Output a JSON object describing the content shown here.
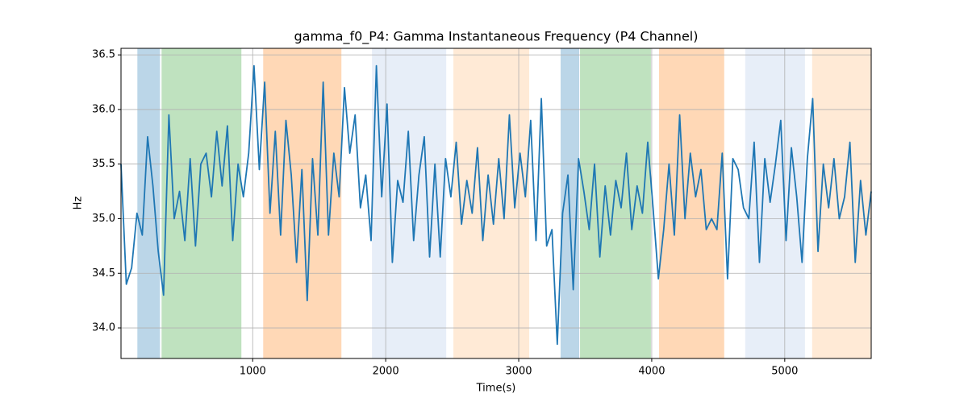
{
  "chart_data": {
    "type": "line",
    "title": "gamma_f0_P4: Gamma Instantaneous Frequency (P4 Channel)",
    "x_label": "Time(s)",
    "y_label": "Hz",
    "x": [
      10,
      50,
      90,
      130,
      170,
      210,
      250,
      290,
      330,
      370,
      410,
      450,
      490,
      530,
      570,
      610,
      650,
      690,
      730,
      770,
      810,
      850,
      890,
      930,
      970,
      1010,
      1050,
      1090,
      1130,
      1170,
      1210,
      1250,
      1290,
      1330,
      1370,
      1410,
      1450,
      1490,
      1530,
      1570,
      1610,
      1650,
      1690,
      1730,
      1770,
      1810,
      1850,
      1890,
      1930,
      1970,
      2010,
      2050,
      2090,
      2130,
      2170,
      2210,
      2250,
      2290,
      2330,
      2370,
      2410,
      2450,
      2490,
      2530,
      2570,
      2610,
      2650,
      2690,
      2730,
      2770,
      2810,
      2850,
      2890,
      2930,
      2970,
      3010,
      3050,
      3090,
      3130,
      3170,
      3210,
      3250,
      3290,
      3330,
      3370,
      3410,
      3450,
      3490,
      3530,
      3570,
      3610,
      3650,
      3690,
      3730,
      3770,
      3810,
      3850,
      3890,
      3930,
      3970,
      4010,
      4050,
      4090,
      4130,
      4170,
      4210,
      4250,
      4290,
      4330,
      4370,
      4410,
      4450,
      4490,
      4530,
      4570,
      4610,
      4650,
      4690,
      4730,
      4770,
      4810,
      4850,
      4890,
      4930,
      4970,
      5010,
      5050,
      5090,
      5130,
      5170,
      5210,
      5250,
      5290,
      5330,
      5370,
      5410,
      5450,
      5490,
      5530,
      5570,
      5610,
      5650
    ],
    "series": [
      {
        "name": "gamma_f0_P4",
        "color": "#1f77b4",
        "values": [
          35.5,
          34.4,
          34.55,
          35.05,
          34.85,
          35.75,
          35.3,
          34.7,
          34.3,
          35.95,
          35.0,
          35.25,
          34.8,
          35.55,
          34.75,
          35.5,
          35.6,
          35.2,
          35.8,
          35.3,
          35.85,
          34.8,
          35.5,
          35.2,
          35.6,
          36.4,
          35.45,
          36.25,
          35.05,
          35.8,
          34.85,
          35.9,
          35.4,
          34.6,
          35.45,
          34.25,
          35.55,
          34.85,
          36.25,
          34.85,
          35.6,
          35.2,
          36.2,
          35.6,
          35.95,
          35.1,
          35.4,
          34.8,
          36.4,
          35.2,
          36.05,
          34.6,
          35.35,
          35.15,
          35.8,
          34.8,
          35.4,
          35.75,
          34.65,
          35.5,
          34.65,
          35.55,
          35.2,
          35.7,
          34.95,
          35.35,
          35.05,
          35.65,
          34.8,
          35.4,
          34.95,
          35.55,
          35.0,
          35.95,
          35.1,
          35.6,
          35.2,
          35.9,
          34.8,
          36.1,
          34.75,
          34.9,
          33.85,
          35.05,
          35.4,
          34.35,
          35.55,
          35.25,
          34.9,
          35.5,
          34.65,
          35.3,
          34.85,
          35.35,
          35.1,
          35.6,
          34.9,
          35.3,
          35.05,
          35.7,
          35.1,
          34.45,
          34.9,
          35.5,
          34.85,
          35.95,
          35.0,
          35.6,
          35.2,
          35.45,
          34.9,
          35.0,
          34.9,
          35.6,
          34.45,
          35.55,
          35.45,
          35.1,
          35.0,
          35.7,
          34.6,
          35.55,
          35.15,
          35.5,
          35.9,
          34.8,
          35.65,
          35.2,
          34.6,
          35.55,
          36.1,
          34.7,
          35.5,
          35.1,
          35.55,
          35.0,
          35.2,
          35.7,
          34.6,
          35.35,
          34.85,
          35.25
        ]
      }
    ],
    "spans": [
      {
        "start": 133,
        "end": 303,
        "color": "#1f77b4"
      },
      {
        "start": 315,
        "end": 915,
        "color": "#2ca02c"
      },
      {
        "start": 1079,
        "end": 1667,
        "color": "#ff7f0e"
      },
      {
        "start": 1897,
        "end": 2455,
        "color": "#aec7e8"
      },
      {
        "start": 2509,
        "end": 3079,
        "color": "#ffbb78"
      },
      {
        "start": 3315,
        "end": 3455,
        "color": "#1f77b4"
      },
      {
        "start": 3461,
        "end": 3994,
        "color": "#2ca02c"
      },
      {
        "start": 4055,
        "end": 4545,
        "color": "#ff7f0e"
      },
      {
        "start": 4703,
        "end": 5152,
        "color": "#aec7e8"
      },
      {
        "start": 5206,
        "end": 5650,
        "color": "#ffbb78"
      }
    ],
    "xlim": [
      10,
      5650
    ],
    "ylim": [
      33.72,
      36.56
    ],
    "xticks": [
      1000,
      2000,
      3000,
      4000,
      5000
    ],
    "yticks": [
      {
        "value": 34.0,
        "label": "34.0"
      },
      {
        "value": 34.5,
        "label": "34.5"
      },
      {
        "value": 35.0,
        "label": "35.0"
      },
      {
        "value": 35.5,
        "label": "35.5"
      },
      {
        "value": 36.0,
        "label": "36.0"
      },
      {
        "value": 36.5,
        "label": "36.5"
      }
    ],
    "grid": true
  }
}
